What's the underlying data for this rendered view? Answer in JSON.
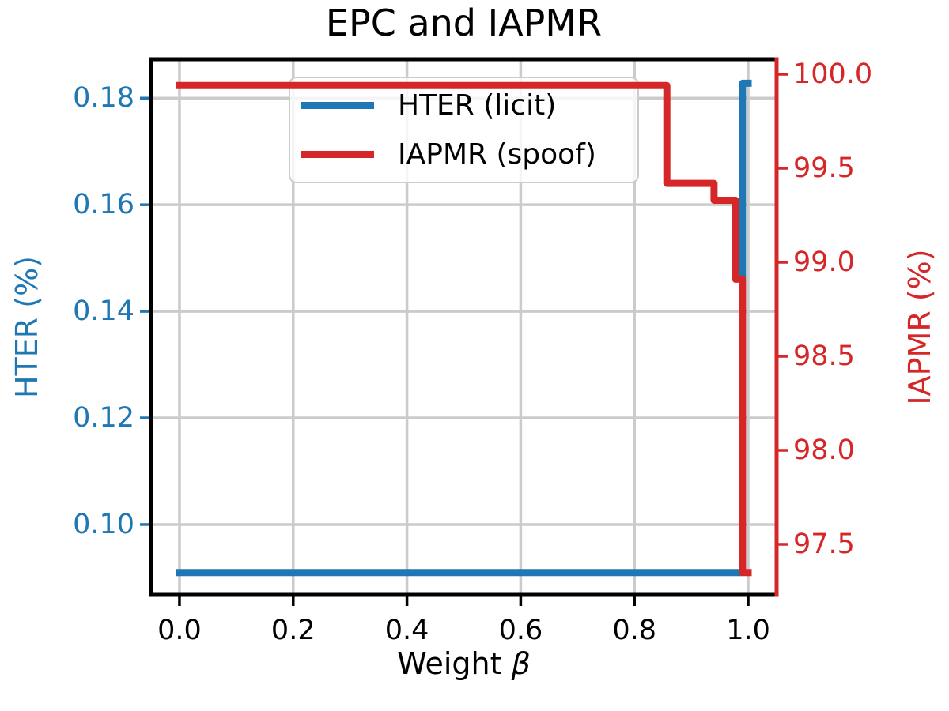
{
  "chart_data": {
    "type": "line",
    "title": "EPC and IAPMR",
    "xlabel": "Weight β",
    "xlabel_word": "Weight",
    "xlabel_symbol": "β",
    "ylabel_left": "HTER (%)",
    "ylabel_right": "IAPMR (%)",
    "grid": true,
    "legend_position": "upper center-left inside plot",
    "xlim": [
      -0.05,
      1.05
    ],
    "ylim_left": [
      0.0868,
      0.1873
    ],
    "ylim_right": [
      97.231,
      100.08
    ],
    "x_ticks": [
      {
        "v": 0.0,
        "label": "0.0"
      },
      {
        "v": 0.2,
        "label": "0.2"
      },
      {
        "v": 0.4,
        "label": "0.4"
      },
      {
        "v": 0.6,
        "label": "0.6"
      },
      {
        "v": 0.8,
        "label": "0.8"
      },
      {
        "v": 1.0,
        "label": "1.0"
      }
    ],
    "y_ticks_left": [
      {
        "v": 0.18,
        "label": "0.18"
      },
      {
        "v": 0.16,
        "label": "0.16"
      },
      {
        "v": 0.14,
        "label": "0.14"
      },
      {
        "v": 0.12,
        "label": "0.12"
      },
      {
        "v": 0.1,
        "label": "0.10"
      }
    ],
    "y_ticks_right": [
      {
        "v": 100.0,
        "label": "100.0"
      },
      {
        "v": 99.5,
        "label": "99.5"
      },
      {
        "v": 99.0,
        "label": "99.0"
      },
      {
        "v": 98.5,
        "label": "98.5"
      },
      {
        "v": 98.0,
        "label": "98.0"
      },
      {
        "v": 97.5,
        "label": "97.5"
      }
    ],
    "colors": {
      "left_axis": "#1f77b4",
      "right_axis": "#d62728",
      "grid": "#cbcbcb",
      "spine": "#000000",
      "legend_border": "#cccccc"
    },
    "series": [
      {
        "name": "HTER (licit)",
        "axis": "left",
        "color": "#1f77b4",
        "points": [
          [
            0.0,
            0.091
          ],
          [
            0.99,
            0.091
          ],
          [
            0.99,
            0.1828
          ],
          [
            1.0,
            0.1828
          ]
        ]
      },
      {
        "name": "IAPMR (spoof)",
        "axis": "right",
        "color": "#d62728",
        "points": [
          [
            0.0,
            99.94
          ],
          [
            0.857,
            99.94
          ],
          [
            0.857,
            99.42
          ],
          [
            0.94,
            99.42
          ],
          [
            0.94,
            99.33
          ],
          [
            0.978,
            99.33
          ],
          [
            0.978,
            98.91
          ],
          [
            0.99,
            98.91
          ],
          [
            0.99,
            97.35
          ],
          [
            1.0,
            97.35
          ]
        ]
      }
    ]
  }
}
